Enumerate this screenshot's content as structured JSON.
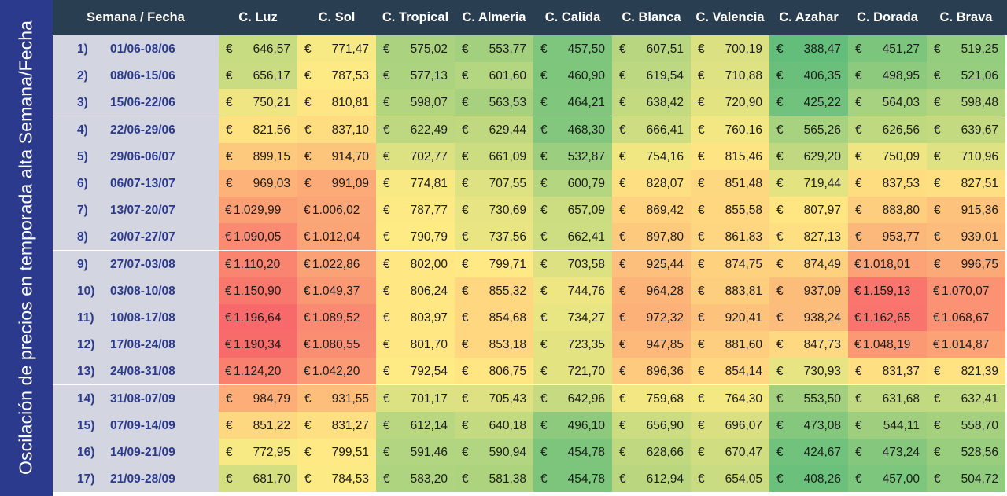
{
  "chart_data": {
    "type": "heatmap",
    "title": "Oscilación de precios en temporada alta Semana/Fecha",
    "row_header": "Semana / Fecha",
    "currency_symbol": "€",
    "color_scale": {
      "low": "#63be7b",
      "mid": "#ffeb84",
      "high": "#f8696b"
    },
    "columns": [
      "C. Luz",
      "C. Sol",
      "C. Tropical",
      "C. Almeria",
      "C. Calida",
      "C. Blanca",
      "C. Valencia",
      "C. Azahar",
      "C. Dorada",
      "C. Brava"
    ],
    "rows": [
      {
        "num": "1)",
        "date": "01/06-08/06",
        "values": [
          646.57,
          771.47,
          575.02,
          553.77,
          457.5,
          607.51,
          700.19,
          388.47,
          451.27,
          519.25
        ],
        "labels": [
          "646,57",
          "771,47",
          "575,02",
          "553,77",
          "457,50",
          "607,51",
          "700,19",
          "388,47",
          "451,27",
          "519,25"
        ]
      },
      {
        "num": "2)",
        "date": "08/06-15/06",
        "values": [
          656.17,
          787.53,
          577.13,
          601.6,
          460.9,
          619.54,
          710.88,
          406.35,
          498.95,
          521.06
        ],
        "labels": [
          "656,17",
          "787,53",
          "577,13",
          "601,60",
          "460,90",
          "619,54",
          "710,88",
          "406,35",
          "498,95",
          "521,06"
        ]
      },
      {
        "num": "3)",
        "date": "15/06-22/06",
        "values": [
          750.21,
          810.81,
          598.07,
          563.53,
          464.21,
          638.42,
          720.9,
          425.22,
          564.03,
          598.48
        ],
        "labels": [
          "750,21",
          "810,81",
          "598,07",
          "563,53",
          "464,21",
          "638,42",
          "720,90",
          "425,22",
          "564,03",
          "598,48"
        ]
      },
      {
        "num": "4)",
        "date": "22/06-29/06",
        "values": [
          821.56,
          837.1,
          622.49,
          629.44,
          468.3,
          666.41,
          760.16,
          565.26,
          626.56,
          639.67
        ],
        "labels": [
          "821,56",
          "837,10",
          "622,49",
          "629,44",
          "468,30",
          "666,41",
          "760,16",
          "565,26",
          "626,56",
          "639,67"
        ]
      },
      {
        "num": "5)",
        "date": "29/06-06/07",
        "values": [
          899.15,
          914.7,
          702.77,
          661.09,
          532.87,
          754.16,
          815.46,
          629.2,
          750.09,
          710.96
        ],
        "labels": [
          "899,15",
          "914,70",
          "702,77",
          "661,09",
          "532,87",
          "754,16",
          "815,46",
          "629,20",
          "750,09",
          "710,96"
        ]
      },
      {
        "num": "6)",
        "date": "06/07-13/07",
        "values": [
          969.03,
          991.09,
          774.81,
          707.55,
          600.79,
          828.07,
          851.48,
          719.44,
          837.53,
          827.51
        ],
        "labels": [
          "969,03",
          "991,09",
          "774,81",
          "707,55",
          "600,79",
          "828,07",
          "851,48",
          "719,44",
          "837,53",
          "827,51"
        ]
      },
      {
        "num": "7)",
        "date": "13/07-20/07",
        "values": [
          1029.99,
          1006.02,
          787.77,
          730.69,
          657.09,
          869.42,
          855.58,
          807.97,
          883.8,
          915.36
        ],
        "labels": [
          "1.029,99",
          "1.006,02",
          "787,77",
          "730,69",
          "657,09",
          "869,42",
          "855,58",
          "807,97",
          "883,80",
          "915,36"
        ]
      },
      {
        "num": "8)",
        "date": "20/07-27/07",
        "values": [
          1090.05,
          1012.04,
          790.79,
          737.56,
          662.41,
          897.8,
          861.83,
          827.13,
          953.77,
          939.01
        ],
        "labels": [
          "1.090,05",
          "1.012,04",
          "790,79",
          "737,56",
          "662,41",
          "897,80",
          "861,83",
          "827,13",
          "953,77",
          "939,01"
        ]
      },
      {
        "num": "9)",
        "date": "27/07-03/08",
        "values": [
          1110.2,
          1022.86,
          802.0,
          799.71,
          703.58,
          925.44,
          874.75,
          874.49,
          1018.01,
          996.75
        ],
        "labels": [
          "1.110,20",
          "1.022,86",
          "802,00",
          "799,71",
          "703,58",
          "925,44",
          "874,75",
          "874,49",
          "1.018,01",
          "996,75"
        ]
      },
      {
        "num": "10)",
        "date": "03/08-10/08",
        "values": [
          1150.9,
          1049.37,
          806.24,
          855.32,
          744.76,
          964.28,
          883.81,
          937.09,
          1159.13,
          1070.07
        ],
        "labels": [
          "1.150,90",
          "1.049,37",
          "806,24",
          "855,32",
          "744,76",
          "964,28",
          "883,81",
          "937,09",
          "1.159,13",
          "1.070,07"
        ]
      },
      {
        "num": "11)",
        "date": "10/08-17/08",
        "values": [
          1196.64,
          1089.52,
          803.97,
          854.68,
          734.27,
          972.32,
          920.41,
          938.24,
          1162.65,
          1068.67
        ],
        "labels": [
          "1.196,64",
          "1.089,52",
          "803,97",
          "854,68",
          "734,27",
          "972,32",
          "920,41",
          "938,24",
          "1.162,65",
          "1.068,67"
        ]
      },
      {
        "num": "12)",
        "date": "17/08-24/08",
        "values": [
          1190.34,
          1080.55,
          801.7,
          853.18,
          723.35,
          947.85,
          881.6,
          847.73,
          1048.19,
          1014.87
        ],
        "labels": [
          "1.190,34",
          "1.080,55",
          "801,70",
          "853,18",
          "723,35",
          "947,85",
          "881,60",
          "847,73",
          "1.048,19",
          "1.014,87"
        ]
      },
      {
        "num": "13)",
        "date": "24/08-31/08",
        "values": [
          1124.2,
          1042.2,
          792.54,
          806.75,
          721.7,
          896.36,
          854.14,
          730.93,
          831.37,
          821.39
        ],
        "labels": [
          "1.124,20",
          "1.042,20",
          "792,54",
          "806,75",
          "721,70",
          "896,36",
          "854,14",
          "730,93",
          "831,37",
          "821,39"
        ]
      },
      {
        "num": "14)",
        "date": "31/08-07/09",
        "values": [
          984.79,
          931.55,
          701.17,
          705.43,
          642.96,
          759.68,
          764.3,
          553.5,
          631.68,
          632.41
        ],
        "labels": [
          "984,79",
          "931,55",
          "701,17",
          "705,43",
          "642,96",
          "759,68",
          "764,30",
          "553,50",
          "631,68",
          "632,41"
        ]
      },
      {
        "num": "15)",
        "date": "07/09-14/09",
        "values": [
          851.22,
          831.27,
          612.14,
          640.18,
          496.1,
          656.9,
          696.07,
          473.08,
          544.11,
          558.7
        ],
        "labels": [
          "851,22",
          "831,27",
          "612,14",
          "640,18",
          "496,10",
          "656,90",
          "696,07",
          "473,08",
          "544,11",
          "558,70"
        ]
      },
      {
        "num": "16)",
        "date": "14/09-21/09",
        "values": [
          772.95,
          799.51,
          591.46,
          590.94,
          454.78,
          628.66,
          670.47,
          424.67,
          473.24,
          528.56
        ],
        "labels": [
          "772,95",
          "799,51",
          "591,46",
          "590,94",
          "454,78",
          "628,66",
          "670,47",
          "424,67",
          "473,24",
          "528,56"
        ]
      },
      {
        "num": "17)",
        "date": "21/09-28/09",
        "values": [
          681.7,
          784.53,
          583.2,
          581.38,
          454.78,
          612.94,
          654.05,
          408.26,
          457.0,
          504.72
        ],
        "labels": [
          "681,70",
          "784,53",
          "583,20",
          "581,38",
          "454,78",
          "612,94",
          "654,05",
          "408,26",
          "457,00",
          "504,72"
        ]
      }
    ]
  }
}
